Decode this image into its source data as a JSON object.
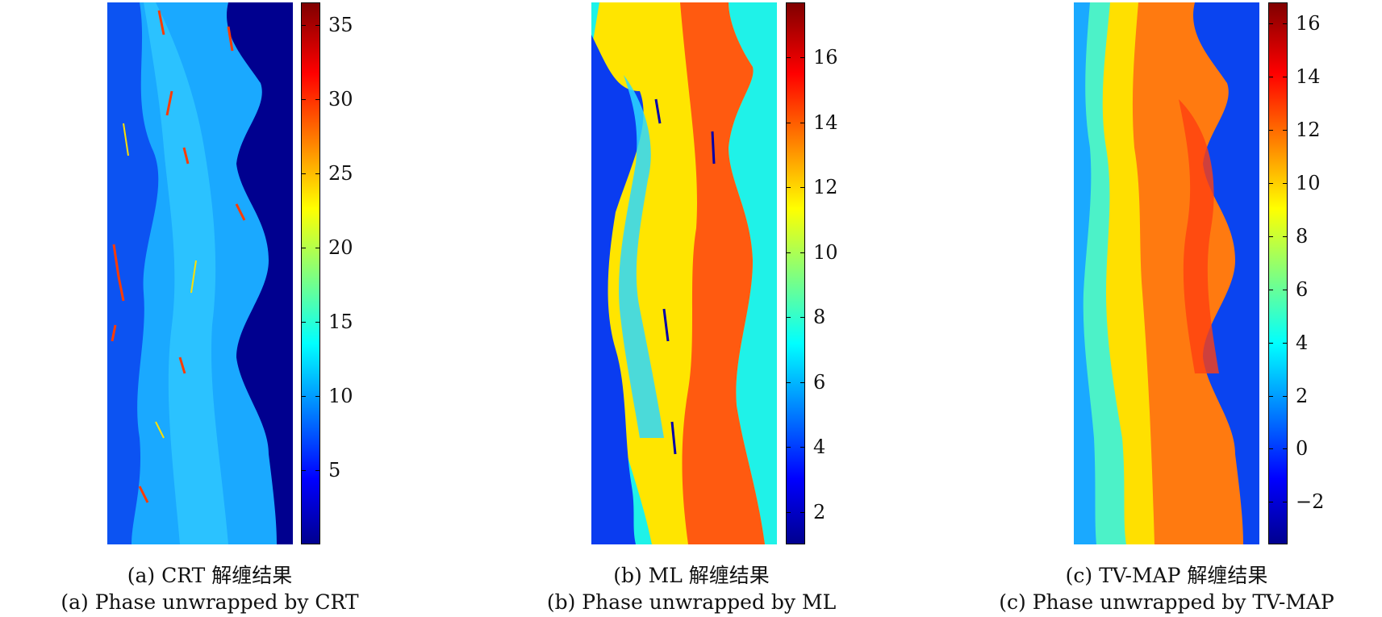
{
  "colors": {
    "colormap": [
      "#00008f",
      "#0000ff",
      "#00ffff",
      "#ffff00",
      "#ff0000",
      "#800000"
    ]
  },
  "panels": [
    {
      "id": "crt",
      "caption_cn": "(a) CRT 解缠结果",
      "caption_en": "(a) Phase unwrapped by CRT",
      "colorbar": {
        "min": 0,
        "max": 36.5,
        "ticks": [
          "5",
          "10",
          "15",
          "20",
          "25",
          "30",
          "35"
        ]
      }
    },
    {
      "id": "ml",
      "caption_cn": "(b) ML 解缠结果",
      "caption_en": "(b) Phase unwrapped by ML",
      "colorbar": {
        "min": 1,
        "max": 17.7,
        "ticks": [
          "2",
          "4",
          "6",
          "8",
          "10",
          "12",
          "14",
          "16"
        ]
      }
    },
    {
      "id": "tvmap",
      "caption_cn": "(c) TV-MAP 解缠结果",
      "caption_en": "(c) Phase unwrapped by TV-MAP",
      "colorbar": {
        "min": -3.6,
        "max": 16.8,
        "ticks": [
          "−2",
          "0",
          "2",
          "4",
          "6",
          "8",
          "10",
          "12",
          "14",
          "16"
        ]
      }
    }
  ]
}
